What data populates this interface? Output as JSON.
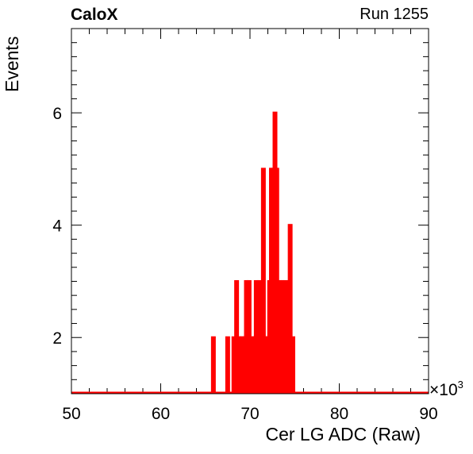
{
  "header": {
    "experiment": "CaloX",
    "run": "Run 1255"
  },
  "chart_data": {
    "type": "bar",
    "title": "",
    "xlabel": "Cer LG ADC (Raw)",
    "ylabel": "Events",
    "x_multiplier": "×10",
    "x_multiplier_exponent": "3",
    "xlim": [
      50,
      90
    ],
    "ylim": [
      1,
      7.5
    ],
    "x_ticks": [
      50,
      60,
      70,
      80,
      90
    ],
    "y_ticks": [
      2,
      4,
      6
    ],
    "series_color": "#ff0000",
    "bin_width": 0.2,
    "bins": [
      {
        "x": 65.9,
        "y": 2
      },
      {
        "x": 67.5,
        "y": 2
      },
      {
        "x": 68.2,
        "y": 2
      },
      {
        "x": 68.5,
        "y": 3
      },
      {
        "x": 68.8,
        "y": 2
      },
      {
        "x": 69.1,
        "y": 2
      },
      {
        "x": 69.4,
        "y": 2
      },
      {
        "x": 69.6,
        "y": 3
      },
      {
        "x": 69.9,
        "y": 3
      },
      {
        "x": 70.2,
        "y": 2
      },
      {
        "x": 70.5,
        "y": 2
      },
      {
        "x": 70.7,
        "y": 3
      },
      {
        "x": 70.9,
        "y": 2
      },
      {
        "x": 71.1,
        "y": 3
      },
      {
        "x": 71.3,
        "y": 2
      },
      {
        "x": 71.5,
        "y": 5
      },
      {
        "x": 71.7,
        "y": 2
      },
      {
        "x": 71.9,
        "y": 2
      },
      {
        "x": 72.2,
        "y": 3
      },
      {
        "x": 72.4,
        "y": 5
      },
      {
        "x": 72.6,
        "y": 5
      },
      {
        "x": 72.8,
        "y": 6
      },
      {
        "x": 73.0,
        "y": 5
      },
      {
        "x": 73.2,
        "y": 2
      },
      {
        "x": 73.4,
        "y": 3
      },
      {
        "x": 73.6,
        "y": 3
      },
      {
        "x": 73.8,
        "y": 2
      },
      {
        "x": 74.0,
        "y": 3
      },
      {
        "x": 74.2,
        "y": 2
      },
      {
        "x": 74.5,
        "y": 4
      },
      {
        "x": 74.8,
        "y": 2
      }
    ]
  }
}
